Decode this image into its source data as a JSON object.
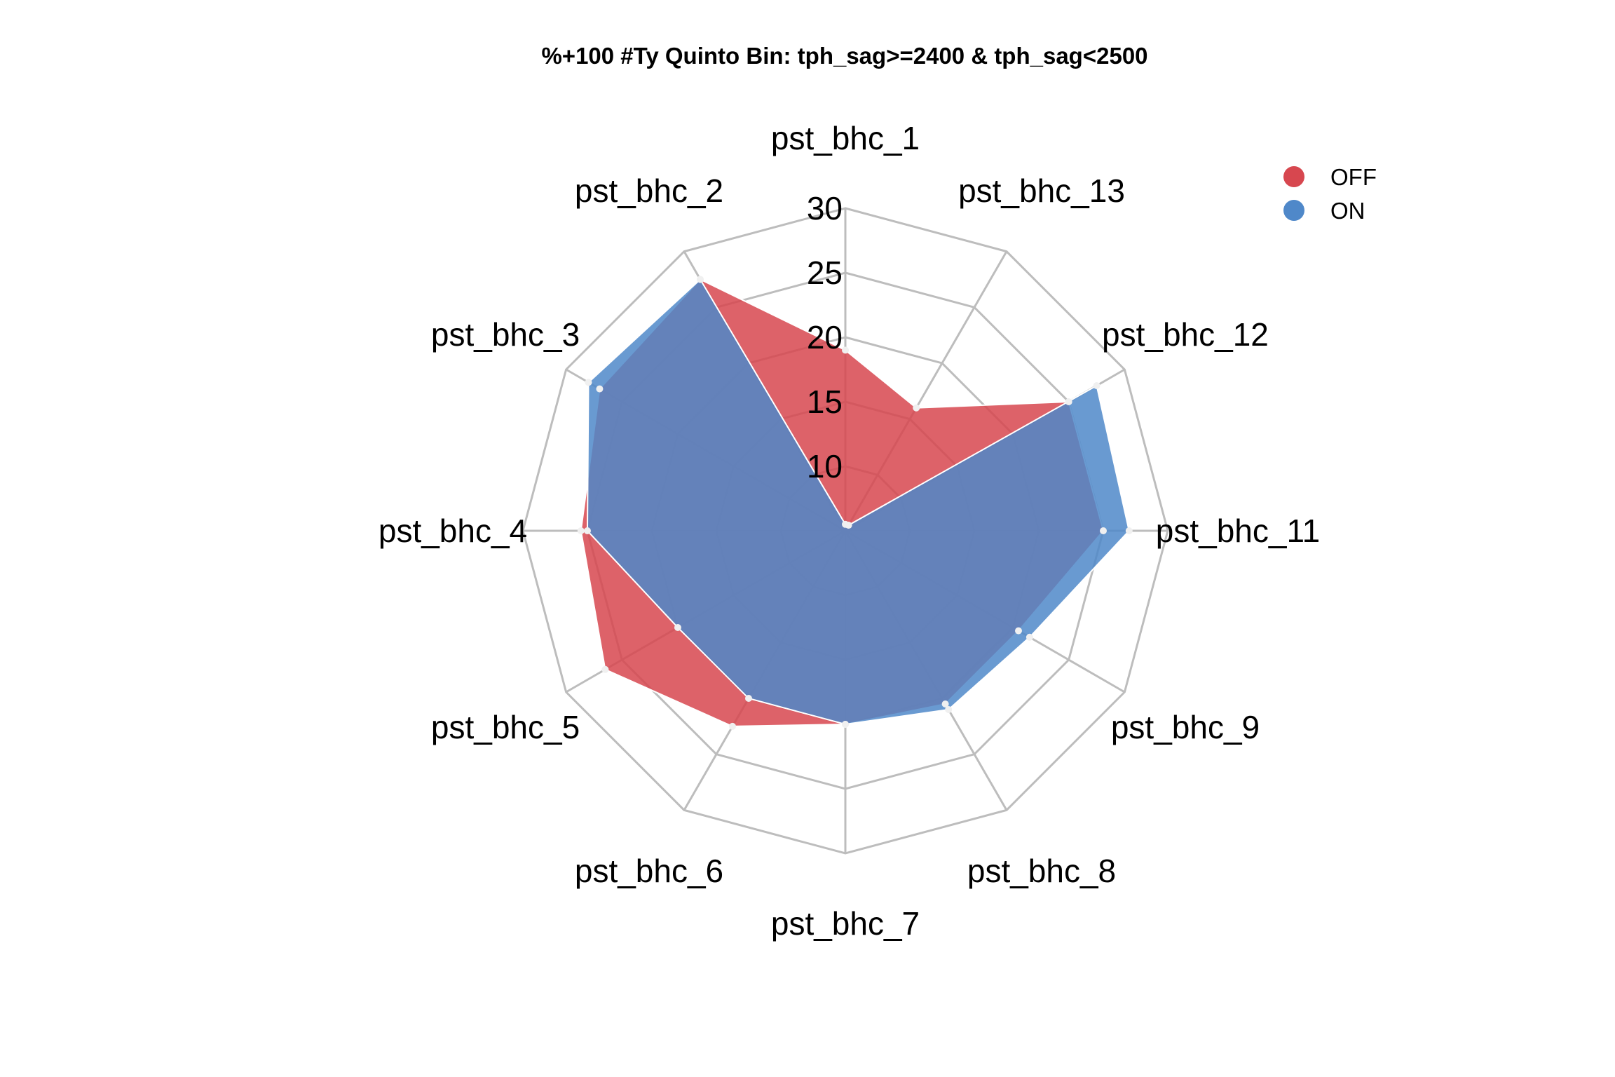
{
  "chart_data": {
    "type": "radar",
    "title": "%+100 #Ty Quinto Bin: tph_sag>=2400 & tph_sag<2500",
    "categories": [
      "pst_bhc_1",
      "pst_bhc_13",
      "pst_bhc_12",
      "pst_bhc_11",
      "pst_bhc_9",
      "pst_bhc_8",
      "pst_bhc_7",
      "pst_bhc_6",
      "pst_bhc_5",
      "pst_bhc_4",
      "pst_bhc_3",
      "pst_bhc_2"
    ],
    "rlim": [
      5,
      30
    ],
    "ticks": [
      10,
      15,
      20,
      25,
      30
    ],
    "tick_labels": [
      "10",
      "15",
      "20",
      "25",
      "30"
    ],
    "series": [
      {
        "name": "OFF",
        "color": "#d7474f",
        "values": [
          19.0,
          16.0,
          25.0,
          25.0,
          20.5,
          20.5,
          20.0,
          22.5,
          26.5,
          25.5,
          27.0,
          27.5
        ]
      },
      {
        "name": "ON",
        "color": "#4f88c9",
        "values": [
          5.5,
          5.5,
          27.5,
          27.0,
          21.5,
          21.0,
          20.0,
          20.0,
          20.0,
          25.0,
          28.0,
          27.5
        ]
      }
    ],
    "legend": "top-right",
    "grid": true
  }
}
